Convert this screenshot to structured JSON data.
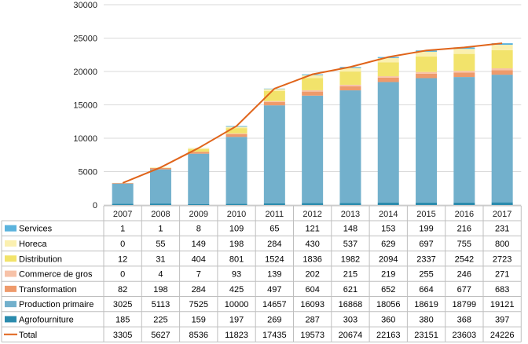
{
  "chart_data": {
    "type": "bar",
    "stacked": true,
    "with_line": true,
    "with_data_table": true,
    "categories": [
      "2007",
      "2008",
      "2009",
      "2010",
      "2011",
      "2012",
      "2013",
      "2014",
      "2015",
      "2016",
      "2017"
    ],
    "ylim": [
      0,
      30000
    ],
    "yticks": [
      "0",
      "5000",
      "10000",
      "15000",
      "20000",
      "25000",
      "30000"
    ],
    "gridlines": true,
    "legend": "data-table",
    "series": [
      {
        "name": "Services",
        "color": "#5bb3dd",
        "values": [
          1,
          1,
          8,
          109,
          65,
          121,
          148,
          153,
          199,
          216,
          231
        ]
      },
      {
        "name": "Horeca",
        "color": "#fbf0b0",
        "values": [
          0,
          55,
          149,
          198,
          284,
          430,
          537,
          629,
          697,
          755,
          800
        ]
      },
      {
        "name": "Distribution",
        "color": "#f2e36b",
        "values": [
          12,
          31,
          404,
          801,
          1524,
          1836,
          1982,
          2094,
          2337,
          2542,
          2723
        ]
      },
      {
        "name": "Commerce de gros",
        "color": "#f7c2a8",
        "values": [
          0,
          4,
          7,
          93,
          139,
          202,
          215,
          219,
          255,
          246,
          271
        ]
      },
      {
        "name": "Transformation",
        "color": "#ee9a6b",
        "values": [
          82,
          198,
          284,
          425,
          497,
          604,
          621,
          652,
          664,
          677,
          683
        ]
      },
      {
        "name": "Production primaire",
        "color": "#72b0cc",
        "values": [
          3025,
          5113,
          7525,
          10000,
          14657,
          16093,
          16868,
          18056,
          18619,
          18799,
          19121
        ]
      },
      {
        "name": "Agrofourniture",
        "color": "#2b8bad",
        "values": [
          185,
          225,
          159,
          197,
          269,
          287,
          303,
          360,
          380,
          368,
          397
        ]
      }
    ],
    "line": {
      "name": "Total",
      "color": "#e0641a",
      "values": [
        3305,
        5627,
        8536,
        11823,
        17435,
        19573,
        20674,
        22163,
        23151,
        23603,
        24226
      ]
    }
  }
}
